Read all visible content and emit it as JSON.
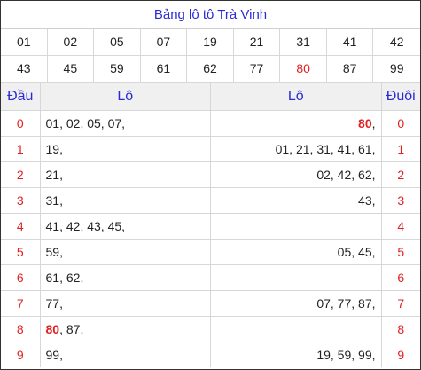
{
  "title": "Bảng lô tô Trà Vinh",
  "numbers": [
    {
      "value": "01",
      "highlight": false
    },
    {
      "value": "02",
      "highlight": false
    },
    {
      "value": "05",
      "highlight": false
    },
    {
      "value": "07",
      "highlight": false
    },
    {
      "value": "19",
      "highlight": false
    },
    {
      "value": "21",
      "highlight": false
    },
    {
      "value": "31",
      "highlight": false
    },
    {
      "value": "41",
      "highlight": false
    },
    {
      "value": "42",
      "highlight": false
    },
    {
      "value": "43",
      "highlight": false
    },
    {
      "value": "45",
      "highlight": false
    },
    {
      "value": "59",
      "highlight": false
    },
    {
      "value": "61",
      "highlight": false
    },
    {
      "value": "62",
      "highlight": false
    },
    {
      "value": "77",
      "highlight": false
    },
    {
      "value": "80",
      "highlight": true
    },
    {
      "value": "87",
      "highlight": false
    },
    {
      "value": "99",
      "highlight": false
    }
  ],
  "headers": {
    "dau": "Đầu",
    "lo_left": "Lô",
    "lo_right": "Lô",
    "duoi": "Đuôi"
  },
  "rows": [
    {
      "dau": "0",
      "left": [
        {
          "v": "01"
        },
        {
          "v": "02"
        },
        {
          "v": "05"
        },
        {
          "v": "07"
        }
      ],
      "right": [
        {
          "v": "80",
          "red": true
        }
      ],
      "duoi": "0"
    },
    {
      "dau": "1",
      "left": [
        {
          "v": "19"
        }
      ],
      "right": [
        {
          "v": "01"
        },
        {
          "v": "21"
        },
        {
          "v": "31"
        },
        {
          "v": "41"
        },
        {
          "v": "61"
        }
      ],
      "duoi": "1"
    },
    {
      "dau": "2",
      "left": [
        {
          "v": "21"
        }
      ],
      "right": [
        {
          "v": "02"
        },
        {
          "v": "42"
        },
        {
          "v": "62"
        }
      ],
      "duoi": "2"
    },
    {
      "dau": "3",
      "left": [
        {
          "v": "31"
        }
      ],
      "right": [
        {
          "v": "43"
        }
      ],
      "duoi": "3"
    },
    {
      "dau": "4",
      "left": [
        {
          "v": "41"
        },
        {
          "v": "42"
        },
        {
          "v": "43"
        },
        {
          "v": "45"
        }
      ],
      "right": [],
      "duoi": "4"
    },
    {
      "dau": "5",
      "left": [
        {
          "v": "59"
        }
      ],
      "right": [
        {
          "v": "05"
        },
        {
          "v": "45"
        }
      ],
      "duoi": "5"
    },
    {
      "dau": "6",
      "left": [
        {
          "v": "61"
        },
        {
          "v": "62"
        }
      ],
      "right": [],
      "duoi": "6"
    },
    {
      "dau": "7",
      "left": [
        {
          "v": "77"
        }
      ],
      "right": [
        {
          "v": "07"
        },
        {
          "v": "77"
        },
        {
          "v": "87"
        }
      ],
      "duoi": "7"
    },
    {
      "dau": "8",
      "left": [
        {
          "v": "80",
          "red": true
        },
        {
          "v": "87"
        }
      ],
      "right": [],
      "duoi": "8"
    },
    {
      "dau": "9",
      "left": [
        {
          "v": "99"
        }
      ],
      "right": [
        {
          "v": "19"
        },
        {
          "v": "59"
        },
        {
          "v": "99"
        }
      ],
      "duoi": "9"
    }
  ],
  "colors": {
    "title": "#2b2bd6",
    "highlight": "#e02020",
    "header_bg": "#f0f0f0"
  }
}
